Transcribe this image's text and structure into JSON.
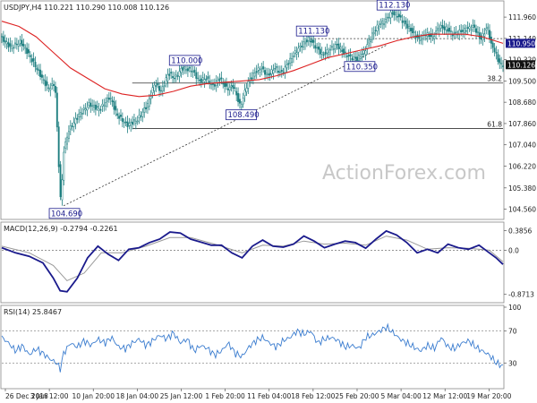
{
  "price_header": "USDJPY,H4  110.221 110.290 110.008 110.126",
  "watermark": "ActionForex.com",
  "colors": {
    "candle": "#1f7f80",
    "ma": "#dd2222",
    "macd": "#1a1a8c",
    "signal": "#999999",
    "rsi": "#3a7ccf",
    "grid": "#aaaaaa"
  },
  "chart_data": [
    {
      "type": "candlestick",
      "title": "USDJPY,H4",
      "header_values": {
        "open": 110.221,
        "high": 110.29,
        "low": 110.008,
        "close": 110.126
      },
      "ylim": [
        104.2,
        112.55
      ],
      "y_ticks": [
        111.96,
        111.14,
        110.32,
        109.5,
        108.68,
        107.86,
        107.04,
        106.22,
        105.38,
        104.56
      ],
      "price_tag_values": [
        110.95,
        110.126
      ],
      "x_ticks": [
        "26 Dec 2018",
        "3 Jan 12:00",
        "10 Jan 20:00",
        "18 Jan 04:00",
        "25 Jan 12:00",
        "1 Feb 20:00",
        "11 Feb 04:00",
        "18 Feb 12:00",
        "25 Feb 20:00",
        "5 Mar 04:00",
        "12 Mar 12:00",
        "19 Mar 20:00"
      ],
      "price_path": [
        [
          0,
          111.2
        ],
        [
          3,
          110.8
        ],
        [
          6,
          111.0
        ],
        [
          8,
          110.6
        ],
        [
          11,
          109.9
        ],
        [
          14,
          109.2
        ],
        [
          16,
          109.4
        ],
        [
          17,
          106.5
        ],
        [
          17.7,
          104.69
        ],
        [
          18.5,
          106.8
        ],
        [
          20,
          107.6
        ],
        [
          23,
          108.2
        ],
        [
          26,
          108.6
        ],
        [
          29,
          108.4
        ],
        [
          32,
          108.9
        ],
        [
          34,
          108.2
        ],
        [
          37,
          107.8
        ],
        [
          40,
          108.0
        ],
        [
          43,
          108.6
        ],
        [
          45,
          109.4
        ],
        [
          47,
          109.1
        ],
        [
          49,
          109.8
        ],
        [
          51,
          109.6
        ],
        [
          53,
          110.0
        ],
        [
          56,
          109.9
        ],
        [
          58,
          109.5
        ],
        [
          60,
          109.6
        ],
        [
          62,
          109.3
        ],
        [
          64,
          109.6
        ],
        [
          66,
          109.2
        ],
        [
          68,
          109.3
        ],
        [
          70,
          108.49
        ],
        [
          72,
          109.4
        ],
        [
          74,
          109.8
        ],
        [
          76,
          110.0
        ],
        [
          78,
          109.7
        ],
        [
          80,
          110.0
        ],
        [
          82,
          109.8
        ],
        [
          84,
          110.2
        ],
        [
          86,
          110.6
        ],
        [
          88,
          110.9
        ],
        [
          90,
          111.13
        ],
        [
          92,
          110.8
        ],
        [
          94,
          110.5
        ],
        [
          96,
          110.7
        ],
        [
          98,
          110.9
        ],
        [
          100,
          110.6
        ],
        [
          102,
          110.4
        ],
        [
          104,
          110.35
        ],
        [
          106,
          110.6
        ],
        [
          108,
          111.2
        ],
        [
          110,
          111.6
        ],
        [
          112,
          111.8
        ],
        [
          114,
          112.13
        ],
        [
          116,
          112.0
        ],
        [
          118,
          111.7
        ],
        [
          120,
          111.4
        ],
        [
          122,
          111.1
        ],
        [
          124,
          111.3
        ],
        [
          126,
          111.2
        ],
        [
          128,
          111.6
        ],
        [
          130,
          111.5
        ],
        [
          132,
          111.3
        ],
        [
          134,
          111.4
        ],
        [
          136,
          111.5
        ],
        [
          138,
          111.6
        ],
        [
          140,
          111.1
        ],
        [
          142,
          111.6
        ],
        [
          143,
          110.9
        ],
        [
          144,
          110.7
        ],
        [
          145,
          110.3
        ],
        [
          146,
          110.126
        ]
      ],
      "ma_path": [
        [
          0,
          111.8
        ],
        [
          5,
          111.6
        ],
        [
          10,
          111.2
        ],
        [
          15,
          110.6
        ],
        [
          20,
          110.0
        ],
        [
          25,
          109.6
        ],
        [
          30,
          109.2
        ],
        [
          35,
          109.0
        ],
        [
          40,
          108.9
        ],
        [
          45,
          108.95
        ],
        [
          50,
          109.1
        ],
        [
          55,
          109.3
        ],
        [
          60,
          109.4
        ],
        [
          65,
          109.45
        ],
        [
          70,
          109.5
        ],
        [
          75,
          109.55
        ],
        [
          80,
          109.7
        ],
        [
          85,
          109.9
        ],
        [
          90,
          110.15
        ],
        [
          95,
          110.4
        ],
        [
          100,
          110.55
        ],
        [
          105,
          110.7
        ],
        [
          110,
          110.85
        ],
        [
          115,
          111.05
        ],
        [
          120,
          111.2
        ],
        [
          125,
          111.3
        ],
        [
          130,
          111.3
        ],
        [
          135,
          111.3
        ],
        [
          140,
          111.2
        ],
        [
          146,
          110.95
        ]
      ],
      "annotations": [
        {
          "label": "104.690",
          "value": 104.69
        },
        {
          "label": "110.000",
          "value": 110.0
        },
        {
          "label": "108.490",
          "value": 108.49
        },
        {
          "label": "111.130",
          "value": 111.13
        },
        {
          "label": "110.350",
          "value": 110.35
        },
        {
          "label": "112.130",
          "value": 112.13
        }
      ],
      "fib_levels": [
        {
          "label": "38.2",
          "value": 109.42
        },
        {
          "label": "61.8",
          "value": 107.67
        }
      ],
      "hlines": [
        111.13
      ],
      "trendline": [
        [
          18,
          104.69
        ],
        [
          104,
          110.35
        ]
      ]
    },
    {
      "type": "line",
      "title": "MACD(12,26,9) -0.2794 -0.2261",
      "ylim": [
        -1.0,
        0.52
      ],
      "y_ticks": [
        0.3856,
        0.0,
        -0.8713
      ],
      "macd_path": [
        [
          0,
          0.05
        ],
        [
          4,
          -0.05
        ],
        [
          8,
          -0.12
        ],
        [
          12,
          -0.25
        ],
        [
          15,
          -0.55
        ],
        [
          17,
          -0.8
        ],
        [
          19,
          -0.82
        ],
        [
          22,
          -0.55
        ],
        [
          25,
          -0.15
        ],
        [
          28,
          0.08
        ],
        [
          31,
          -0.08
        ],
        [
          34,
          -0.2
        ],
        [
          37,
          0.02
        ],
        [
          40,
          0.05
        ],
        [
          43,
          0.15
        ],
        [
          46,
          0.22
        ],
        [
          49,
          0.36
        ],
        [
          52,
          0.34
        ],
        [
          55,
          0.22
        ],
        [
          58,
          0.16
        ],
        [
          61,
          0.1
        ],
        [
          64,
          0.1
        ],
        [
          67,
          -0.05
        ],
        [
          70,
          -0.15
        ],
        [
          73,
          0.08
        ],
        [
          76,
          0.2
        ],
        [
          79,
          0.08
        ],
        [
          82,
          0.06
        ],
        [
          85,
          0.12
        ],
        [
          88,
          0.28
        ],
        [
          91,
          0.18
        ],
        [
          94,
          0.05
        ],
        [
          97,
          0.12
        ],
        [
          100,
          0.18
        ],
        [
          103,
          0.15
        ],
        [
          106,
          0.04
        ],
        [
          109,
          0.22
        ],
        [
          112,
          0.38
        ],
        [
          115,
          0.3
        ],
        [
          118,
          0.15
        ],
        [
          121,
          -0.05
        ],
        [
          124,
          0.02
        ],
        [
          127,
          -0.05
        ],
        [
          130,
          0.12
        ],
        [
          133,
          0.05
        ],
        [
          136,
          0.02
        ],
        [
          139,
          0.1
        ],
        [
          142,
          -0.05
        ],
        [
          144,
          -0.15
        ],
        [
          146,
          -0.2794
        ]
      ],
      "signal_path": [
        [
          0,
          0.08
        ],
        [
          8,
          -0.05
        ],
        [
          15,
          -0.3
        ],
        [
          19,
          -0.6
        ],
        [
          24,
          -0.45
        ],
        [
          29,
          -0.05
        ],
        [
          35,
          -0.05
        ],
        [
          42,
          0.08
        ],
        [
          49,
          0.25
        ],
        [
          55,
          0.25
        ],
        [
          62,
          0.12
        ],
        [
          70,
          -0.05
        ],
        [
          76,
          0.1
        ],
        [
          82,
          0.08
        ],
        [
          88,
          0.18
        ],
        [
          94,
          0.12
        ],
        [
          100,
          0.14
        ],
        [
          106,
          0.1
        ],
        [
          112,
          0.28
        ],
        [
          118,
          0.2
        ],
        [
          124,
          0.02
        ],
        [
          130,
          0.05
        ],
        [
          136,
          0.04
        ],
        [
          142,
          0.0
        ],
        [
          146,
          -0.2261
        ]
      ]
    },
    {
      "type": "line",
      "title": "RSI(14) 25.8467",
      "ylim": [
        0,
        100
      ],
      "y_ticks": [
        100,
        70,
        30,
        0
      ],
      "rsi_path": [
        [
          0,
          62
        ],
        [
          2,
          55
        ],
        [
          4,
          45
        ],
        [
          6,
          52
        ],
        [
          8,
          40
        ],
        [
          10,
          48
        ],
        [
          12,
          42
        ],
        [
          14,
          35
        ],
        [
          16,
          30
        ],
        [
          17,
          22
        ],
        [
          18,
          42
        ],
        [
          20,
          55
        ],
        [
          22,
          50
        ],
        [
          24,
          58
        ],
        [
          26,
          52
        ],
        [
          28,
          60
        ],
        [
          30,
          55
        ],
        [
          32,
          62
        ],
        [
          34,
          50
        ],
        [
          36,
          48
        ],
        [
          38,
          55
        ],
        [
          40,
          60
        ],
        [
          42,
          52
        ],
        [
          44,
          58
        ],
        [
          46,
          65
        ],
        [
          48,
          60
        ],
        [
          50,
          68
        ],
        [
          52,
          55
        ],
        [
          54,
          60
        ],
        [
          56,
          45
        ],
        [
          58,
          52
        ],
        [
          60,
          48
        ],
        [
          62,
          40
        ],
        [
          64,
          45
        ],
        [
          66,
          55
        ],
        [
          68,
          42
        ],
        [
          70,
          38
        ],
        [
          72,
          50
        ],
        [
          74,
          58
        ],
        [
          76,
          62
        ],
        [
          78,
          55
        ],
        [
          80,
          50
        ],
        [
          82,
          58
        ],
        [
          84,
          62
        ],
        [
          86,
          70
        ],
        [
          88,
          66
        ],
        [
          90,
          70
        ],
        [
          92,
          55
        ],
        [
          94,
          60
        ],
        [
          96,
          62
        ],
        [
          98,
          58
        ],
        [
          100,
          50
        ],
        [
          102,
          52
        ],
        [
          104,
          48
        ],
        [
          106,
          62
        ],
        [
          108,
          65
        ],
        [
          110,
          70
        ],
        [
          112,
          75
        ],
        [
          114,
          68
        ],
        [
          116,
          60
        ],
        [
          118,
          55
        ],
        [
          120,
          50
        ],
        [
          122,
          45
        ],
        [
          124,
          52
        ],
        [
          126,
          48
        ],
        [
          128,
          62
        ],
        [
          130,
          50
        ],
        [
          132,
          48
        ],
        [
          134,
          55
        ],
        [
          136,
          58
        ],
        [
          138,
          50
        ],
        [
          140,
          45
        ],
        [
          142,
          40
        ],
        [
          143,
          35
        ],
        [
          144,
          30
        ],
        [
          146,
          25.8467
        ]
      ]
    }
  ]
}
